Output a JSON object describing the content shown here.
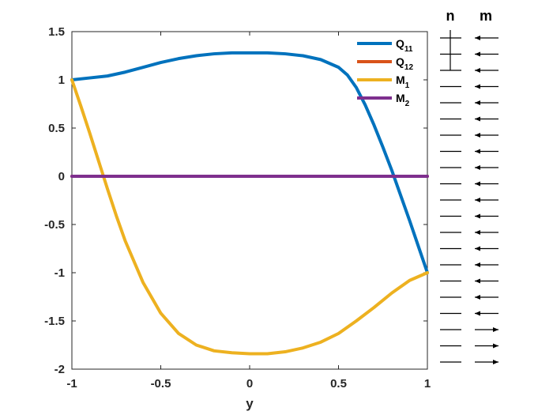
{
  "chart_data": {
    "type": "line",
    "title": "",
    "xlabel": "y",
    "ylabel": "",
    "xlim": [
      -1,
      1
    ],
    "ylim": [
      -2,
      1.5
    ],
    "xticks": [
      "-1",
      "-0.5",
      "0",
      "0.5",
      "1"
    ],
    "yticks": [
      "1.5",
      "1",
      "0.5",
      "0",
      "-0.5",
      "-1",
      "-1.5",
      "-2"
    ],
    "grid": false,
    "legend_position": "top-right",
    "series": [
      {
        "name": "Q11",
        "base": "Q",
        "sub": "11",
        "color": "#0072BD",
        "x": [
          -1,
          -0.9,
          -0.8,
          -0.7,
          -0.6,
          -0.5,
          -0.4,
          -0.3,
          -0.2,
          -0.1,
          0,
          0.1,
          0.2,
          0.3,
          0.4,
          0.5,
          0.55,
          0.6,
          0.65,
          0.7,
          0.75,
          0.8,
          0.85,
          0.9,
          0.95,
          1
        ],
        "y": [
          1.0,
          1.02,
          1.04,
          1.08,
          1.13,
          1.18,
          1.22,
          1.25,
          1.27,
          1.28,
          1.28,
          1.28,
          1.27,
          1.25,
          1.21,
          1.13,
          1.05,
          0.92,
          0.74,
          0.53,
          0.3,
          0.06,
          -0.2,
          -0.46,
          -0.73,
          -1.0
        ]
      },
      {
        "name": "Q12",
        "base": "Q",
        "sub": "12",
        "color": "#D95319",
        "x": [
          -1,
          1
        ],
        "y": [
          0,
          0
        ]
      },
      {
        "name": "M1",
        "base": "M",
        "sub": "1",
        "color": "#EDB120",
        "x": [
          -1,
          -0.95,
          -0.9,
          -0.85,
          -0.8,
          -0.75,
          -0.7,
          -0.6,
          -0.5,
          -0.4,
          -0.3,
          -0.2,
          -0.1,
          0,
          0.1,
          0.2,
          0.3,
          0.4,
          0.5,
          0.6,
          0.7,
          0.8,
          0.9,
          1
        ],
        "y": [
          1.0,
          0.73,
          0.45,
          0.16,
          -0.13,
          -0.41,
          -0.67,
          -1.1,
          -1.42,
          -1.63,
          -1.75,
          -1.81,
          -1.83,
          -1.84,
          -1.84,
          -1.82,
          -1.78,
          -1.72,
          -1.63,
          -1.5,
          -1.36,
          -1.21,
          -1.08,
          -1.0
        ]
      },
      {
        "name": "M2",
        "base": "M",
        "sub": "2",
        "color": "#7E2F8E",
        "x": [
          -1,
          1
        ],
        "y": [
          0,
          0
        ]
      }
    ],
    "side_panel": {
      "n_label": "n",
      "m_label": "m",
      "n_marker_row": 2,
      "m_directions": [
        "left",
        "left",
        "left",
        "left",
        "left",
        "left",
        "left",
        "left",
        "left",
        "left",
        "left",
        "left",
        "left",
        "left",
        "left",
        "left",
        "left",
        "left",
        "right",
        "right",
        "right"
      ]
    }
  }
}
